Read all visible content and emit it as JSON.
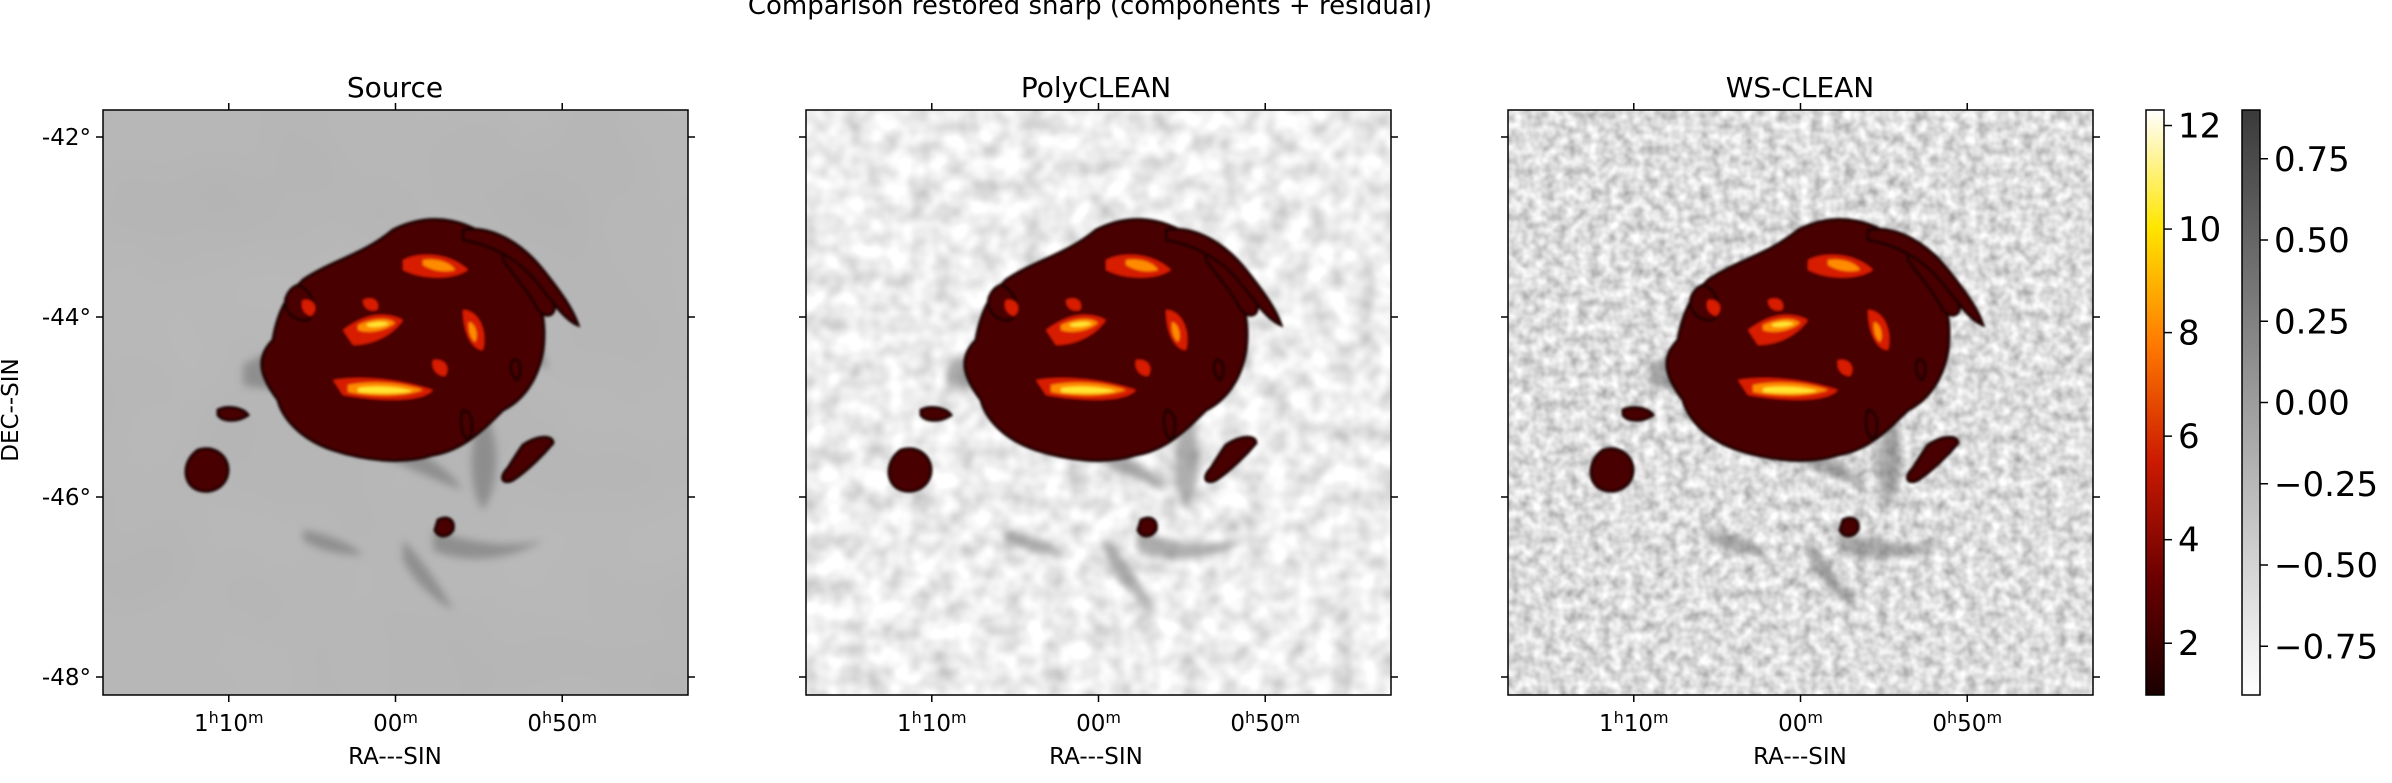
{
  "figure": {
    "suptitle": "Comparison restored sharp (components + residual)"
  },
  "chart_data": {
    "type": "heatmap",
    "panels": [
      {
        "title": "Source",
        "xlabel": "RA---SIN",
        "ylabel": "DEC--SIN",
        "background": "smooth",
        "show_ytick_labels": true
      },
      {
        "title": "PolyCLEAN",
        "xlabel": "RA---SIN",
        "ylabel": "",
        "background": "noisy-coarse",
        "show_ytick_labels": false
      },
      {
        "title": "WS-CLEAN",
        "xlabel": "RA---SIN",
        "ylabel": "",
        "background": "noisy-fine",
        "show_ytick_labels": false
      }
    ],
    "x_ticks": [
      {
        "pre": "1",
        "h": "h",
        "mid": "10",
        "m": "m"
      },
      {
        "pre": "",
        "h": "",
        "mid": "00",
        "m": "m"
      },
      {
        "pre": "0",
        "h": "h",
        "mid": "50",
        "m": "m"
      }
    ],
    "y_ticks": [
      "-42°",
      "-44°",
      "-46°",
      "-48°"
    ],
    "y_tick_values": [
      -42,
      -44,
      -46,
      -48
    ],
    "ylim": [
      -48.2,
      -41.7
    ],
    "colorbars": [
      {
        "name": "components",
        "cmap": "afmhot",
        "ticks": [
          "12",
          "10",
          "8",
          "6",
          "4",
          "2"
        ],
        "tick_values": [
          12,
          10,
          8,
          6,
          4,
          2
        ],
        "range": [
          1.0,
          12.3
        ]
      },
      {
        "name": "residual",
        "cmap": "gray_r",
        "ticks": [
          "0.75",
          "0.50",
          "0.25",
          "0.00",
          "−0.25",
          "−0.50",
          "−0.75"
        ],
        "tick_values": [
          0.75,
          0.5,
          0.25,
          0.0,
          -0.25,
          -0.5,
          -0.75
        ],
        "range": [
          -0.9,
          0.9
        ]
      }
    ]
  }
}
